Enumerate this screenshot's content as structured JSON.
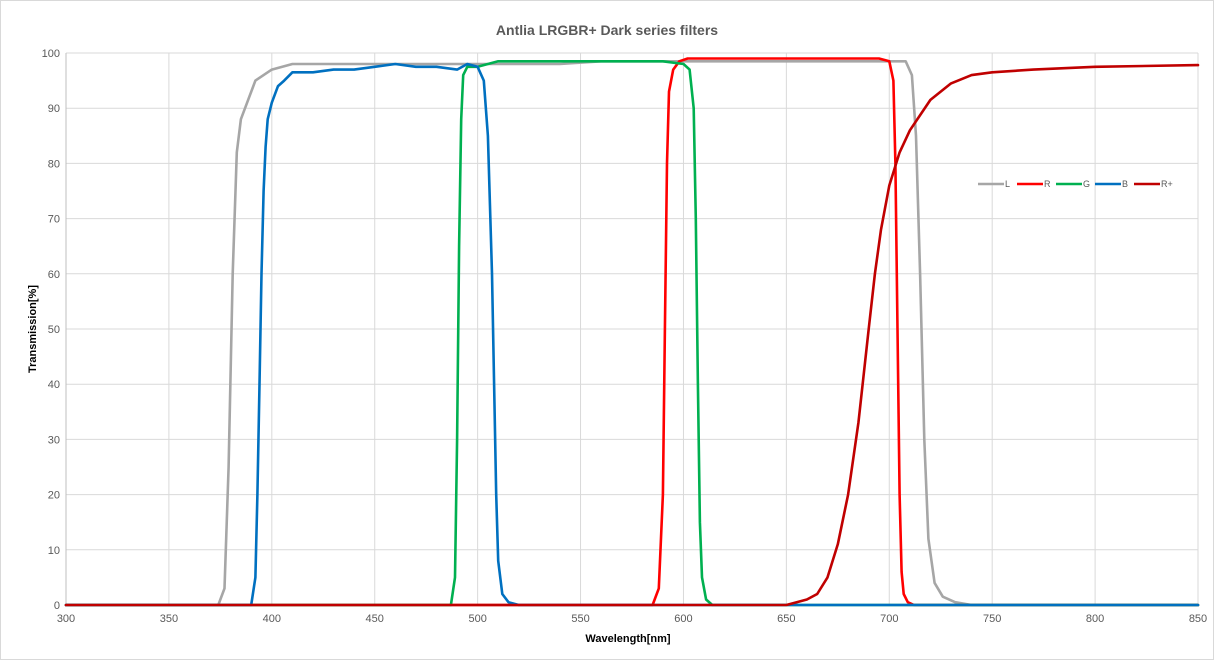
{
  "chart_data": {
    "type": "line",
    "title": "Antlia LRGBR+ Dark series filters",
    "xlabel": "Wavelength[nm]",
    "ylabel": "Transmission[%]",
    "xlim": [
      300,
      850
    ],
    "ylim": [
      0,
      100
    ],
    "xticks": [
      300,
      350,
      400,
      450,
      500,
      550,
      600,
      650,
      700,
      750,
      800,
      850
    ],
    "yticks": [
      0,
      10,
      20,
      30,
      40,
      50,
      60,
      70,
      80,
      90,
      100
    ],
    "grid": true,
    "legend_position": "right",
    "series": [
      {
        "name": "L",
        "color": "#a6a6a6",
        "x": [
          300,
          374,
          377,
          379,
          381,
          383,
          385,
          388,
          392,
          396,
          400,
          410,
          420,
          440,
          460,
          480,
          500,
          520,
          540,
          560,
          580,
          600,
          620,
          640,
          660,
          680,
          700,
          708,
          711,
          713,
          715,
          717,
          719,
          722,
          726,
          732,
          740,
          850
        ],
        "y": [
          0,
          0,
          3,
          25,
          60,
          82,
          88,
          91,
          95,
          96,
          97,
          98,
          98,
          98,
          98,
          98,
          98,
          98,
          98,
          98.5,
          98.5,
          98.5,
          98.5,
          98.5,
          98.5,
          98.5,
          98.5,
          98.5,
          96,
          85,
          60,
          30,
          12,
          4,
          1.5,
          0.5,
          0,
          0
        ]
      },
      {
        "name": "R",
        "color": "#ff0000",
        "x": [
          300,
          585,
          588,
          590,
          591,
          592,
          593,
          595,
          598,
          602,
          620,
          640,
          660,
          680,
          695,
          700,
          702,
          703,
          704,
          705,
          706,
          707,
          709,
          712,
          850
        ],
        "y": [
          0,
          0,
          3,
          20,
          50,
          80,
          93,
          97,
          98.5,
          99,
          99,
          99,
          99,
          99,
          99,
          98.5,
          95,
          80,
          50,
          20,
          6,
          2,
          0.5,
          0,
          0
        ]
      },
      {
        "name": "G",
        "color": "#00b050",
        "x": [
          300,
          487,
          489,
          490,
          491,
          492,
          493,
          495,
          500,
          510,
          530,
          550,
          570,
          590,
          600,
          603,
          605,
          606,
          607,
          608,
          609,
          611,
          614,
          850
        ],
        "y": [
          0,
          0,
          5,
          30,
          65,
          88,
          96,
          97.5,
          97.5,
          98.5,
          98.5,
          98.5,
          98.5,
          98.5,
          98,
          97,
          90,
          70,
          40,
          15,
          5,
          1,
          0,
          0
        ]
      },
      {
        "name": "B",
        "color": "#0070c0",
        "x": [
          300,
          390,
          392,
          393,
          394,
          395,
          396,
          397,
          398,
          400,
          403,
          406,
          410,
          420,
          430,
          440,
          450,
          460,
          470,
          480,
          490,
          495,
          500,
          503,
          505,
          507,
          508,
          509,
          510,
          512,
          515,
          520,
          850
        ],
        "y": [
          0,
          0,
          5,
          20,
          40,
          60,
          75,
          83,
          88,
          91,
          94,
          95,
          96.5,
          96.5,
          97,
          97,
          97.5,
          98,
          97.5,
          97.5,
          97,
          98,
          97.5,
          95,
          85,
          60,
          40,
          20,
          8,
          2,
          0.5,
          0,
          0
        ]
      },
      {
        "name": "R+",
        "color": "#c00000",
        "x": [
          300,
          640,
          650,
          660,
          665,
          670,
          675,
          680,
          685,
          690,
          693,
          696,
          700,
          705,
          710,
          720,
          730,
          740,
          750,
          770,
          800,
          850
        ],
        "y": [
          0,
          0,
          0,
          1,
          2,
          5,
          11,
          20,
          33,
          50,
          60,
          68,
          76,
          82,
          86,
          91.5,
          94.5,
          96,
          96.5,
          97,
          97.5,
          97.8
        ]
      }
    ]
  }
}
